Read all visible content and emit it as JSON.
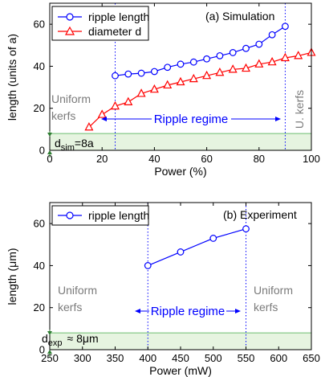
{
  "chart_data": [
    {
      "type": "line",
      "title": "(a) Simulation",
      "xlabel": "Power (%)",
      "ylabel": "length (units of a)",
      "xlim": [
        0,
        100
      ],
      "ylim": [
        0,
        70
      ],
      "xticks": [
        0,
        20,
        40,
        60,
        80,
        100
      ],
      "yticks": [
        0,
        20,
        40,
        60
      ],
      "grid": false,
      "legend": "top-left",
      "series": [
        {
          "name": "ripple length",
          "marker": "circle",
          "color": "#0000ff",
          "x": [
            25,
            30,
            35,
            40,
            45,
            50,
            55,
            60,
            65,
            70,
            75,
            80,
            85,
            90
          ],
          "y": [
            35.5,
            36.3,
            36.7,
            37.5,
            39.5,
            41,
            42,
            43.5,
            45,
            46.5,
            48.5,
            50.5,
            55,
            59
          ]
        },
        {
          "name": "diameter d",
          "marker": "triangle",
          "color": "#ff0000",
          "x": [
            15,
            20,
            25,
            30,
            35,
            40,
            45,
            50,
            55,
            60,
            65,
            70,
            75,
            80,
            85,
            90,
            95,
            100
          ],
          "y": [
            11,
            17,
            21,
            23,
            27,
            29,
            31,
            32.5,
            34,
            35.5,
            37,
            38.5,
            39,
            41,
            42,
            44,
            45,
            46.5
          ]
        }
      ],
      "vlines": [
        25,
        90
      ],
      "band": {
        "y0": 0,
        "y1": 8,
        "color": "#e6f4e0"
      },
      "annotations": {
        "uniform_left": [
          "Uniform",
          "kerfs"
        ],
        "uniform_right": "U. kerfs",
        "regime": "Ripple regime",
        "dim_main": "d",
        "dim_sub": "sim",
        "dim_eq": "=8a"
      }
    },
    {
      "type": "line",
      "title": "(b) Experiment",
      "xlabel": "Power (mW)",
      "ylabel": "length (μm)",
      "xlim": [
        250,
        650
      ],
      "ylim": [
        0,
        70
      ],
      "xticks": [
        250,
        300,
        350,
        400,
        450,
        500,
        550,
        600,
        650
      ],
      "yticks": [
        0,
        20,
        40,
        60
      ],
      "grid": false,
      "legend": "top-left",
      "series": [
        {
          "name": "ripple length",
          "marker": "circle",
          "color": "#0000ff",
          "x": [
            400,
            450,
            500,
            550
          ],
          "y": [
            40,
            46.5,
            53,
            57.5
          ]
        }
      ],
      "vlines": [
        400,
        550
      ],
      "band": {
        "y0": 0,
        "y1": 8,
        "color": "#e6f4e0"
      },
      "annotations": {
        "uniform_left": [
          "Uniform",
          "kerfs"
        ],
        "uniform_right": [
          "Uniform",
          "kerfs"
        ],
        "regime": "Ripple regime",
        "dim_main": "d",
        "dim_sub": "exp",
        "dim_eq": "≈ 8μm"
      }
    }
  ]
}
